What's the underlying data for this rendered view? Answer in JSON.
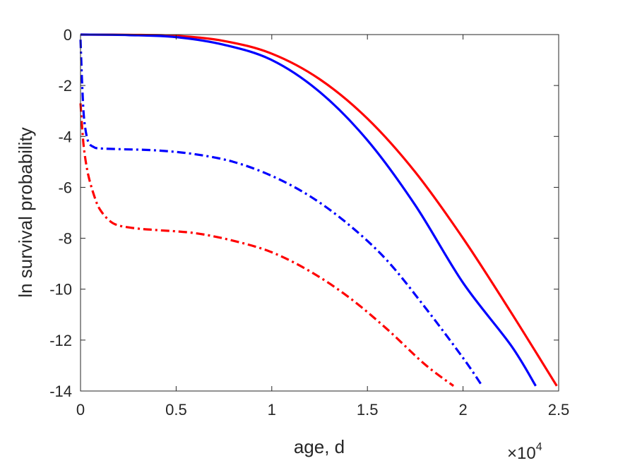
{
  "chart_data": {
    "type": "line",
    "xlabel": "age, d",
    "ylabel": "ln survival probability",
    "x_multiplier": {
      "base": "×10",
      "exponent": "4"
    },
    "xlim": [
      0,
      25000
    ],
    "ylim": [
      -14,
      0
    ],
    "xticks": [
      0,
      5000,
      10000,
      15000,
      20000,
      25000
    ],
    "xtick_labels": [
      "0",
      "0.5",
      "1",
      "1.5",
      "2",
      "2.5"
    ],
    "yticks": [
      0,
      -2,
      -4,
      -6,
      -8,
      -10,
      -12,
      -14
    ],
    "ytick_labels": [
      "0",
      "-2",
      "-4",
      "-6",
      "-8",
      "-10",
      "-12",
      "-14"
    ],
    "grid": false,
    "series": [
      {
        "color": "#ff0000",
        "style": "solid",
        "x": [
          0,
          2500,
          5000,
          7500,
          10000,
          12500,
          15000,
          17500,
          20000,
          22500,
          24900
        ],
        "y": [
          0,
          -0.01,
          -0.05,
          -0.25,
          -0.75,
          -1.75,
          -3.3,
          -5.4,
          -8.0,
          -10.9,
          -13.8
        ]
      },
      {
        "color": "#0000ff",
        "style": "solid",
        "x": [
          0,
          2500,
          5000,
          7500,
          10000,
          12500,
          15000,
          17500,
          20000,
          22500,
          23800
        ],
        "y": [
          0,
          -0.02,
          -0.1,
          -0.4,
          -1.0,
          -2.25,
          -4.15,
          -6.7,
          -9.75,
          -12.2,
          -13.8
        ]
      },
      {
        "color": "#0000ff",
        "style": "dashdot",
        "x": [
          0,
          100,
          200,
          400,
          700,
          1000,
          2000,
          4000,
          6000,
          8000,
          10000,
          12000,
          14000,
          16000,
          18000,
          20000,
          21000
        ],
        "y": [
          -0.2,
          -2.2,
          -3.4,
          -4.2,
          -4.42,
          -4.47,
          -4.5,
          -4.55,
          -4.7,
          -5.0,
          -5.55,
          -6.35,
          -7.45,
          -8.85,
          -10.7,
          -12.7,
          -13.8
        ]
      },
      {
        "color": "#ff0000",
        "style": "dashdot",
        "x": [
          0,
          100,
          200,
          400,
          700,
          1000,
          1500,
          2000,
          3000,
          4000,
          6000,
          8000,
          10000,
          12000,
          14000,
          16000,
          18000,
          19500
        ],
        "y": [
          -2.7,
          -3.8,
          -4.6,
          -5.5,
          -6.3,
          -6.85,
          -7.3,
          -7.5,
          -7.62,
          -7.68,
          -7.8,
          -8.1,
          -8.55,
          -9.3,
          -10.3,
          -11.55,
          -12.95,
          -13.8
        ]
      }
    ]
  }
}
